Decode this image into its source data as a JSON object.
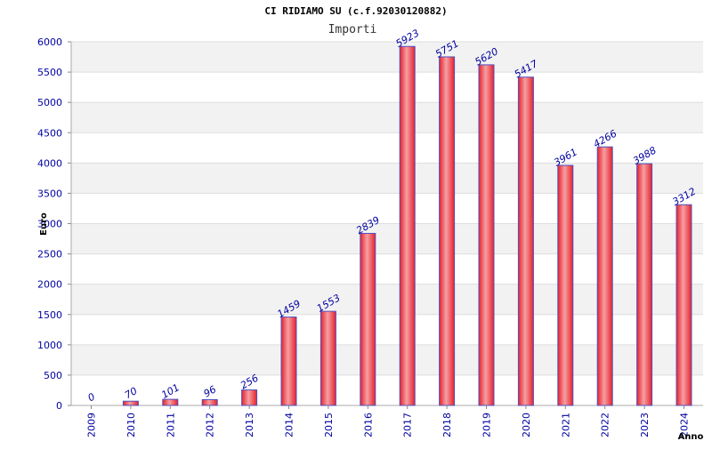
{
  "chart_data": {
    "type": "bar",
    "title": "CI RIDIAMO SU (c.f.92030120882)",
    "subtitle": "Importi",
    "xlabel": "Anno",
    "ylabel": "Euro",
    "categories": [
      "2009",
      "2010",
      "2011",
      "2012",
      "2013",
      "2014",
      "2015",
      "2016",
      "2017",
      "2018",
      "2019",
      "2020",
      "2021",
      "2022",
      "2023",
      "2024"
    ],
    "values": [
      0,
      70,
      101,
      96,
      256,
      1459,
      1553,
      2839,
      5923,
      5751,
      5620,
      5417,
      3961,
      4266,
      3988,
      3312
    ],
    "ylim": [
      0,
      6000
    ],
    "yticks": [
      0,
      500,
      1000,
      1500,
      2000,
      2500,
      3000,
      3500,
      4000,
      4500,
      5000,
      5500,
      6000
    ],
    "grid": true,
    "colors": {
      "bar": "#e8202a",
      "bar_highlight": "#f4a0a4",
      "bar_edge": "#5050c0",
      "band": "#f2f2f2",
      "gridline": "#dddddd",
      "tick_text": "#0000a0"
    }
  }
}
